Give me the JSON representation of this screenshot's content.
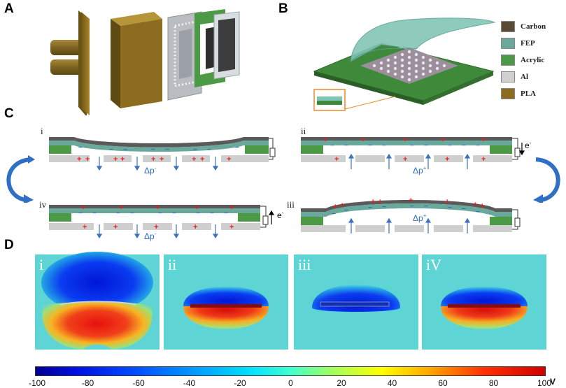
{
  "panels": {
    "a": "A",
    "b": "B",
    "c": "C",
    "d": "D"
  },
  "legend": [
    {
      "label": "Carbon",
      "color": "#5a4a34"
    },
    {
      "label": "FEP",
      "color": "#69a89a"
    },
    {
      "label": "Acrylic",
      "color": "#4c9a45"
    },
    {
      "label": "Al",
      "color": "#d0d0d0"
    },
    {
      "label": "PLA",
      "color": "#8c6d1f"
    }
  ],
  "steps": {
    "i": {
      "label": "i",
      "pressure": "Δp",
      "sign": "-"
    },
    "ii": {
      "label": "ii",
      "pressure": "Δp",
      "sign": "+",
      "electron": "e",
      "electron_sign": "-"
    },
    "iii": {
      "label": "iii",
      "pressure": "Δp",
      "sign": "+"
    },
    "iv": {
      "label": "iv",
      "pressure": "Δp",
      "sign": "-",
      "electron": "e",
      "electron_sign": "-"
    }
  },
  "maps": [
    {
      "label": "i",
      "mode": "split"
    },
    {
      "label": "ii",
      "mode": "cap"
    },
    {
      "label": "iii",
      "mode": "neg"
    },
    {
      "label": "iV",
      "mode": "cap"
    }
  ],
  "colorbar": {
    "ticks": [
      "-100",
      "-80",
      "-60",
      "-40",
      "-20",
      "0",
      "20",
      "40",
      "60",
      "80",
      "100"
    ],
    "unit": "V",
    "min": -100,
    "max": 100
  },
  "colors": {
    "carbon": "#5a4a34",
    "fep": "#69a89a",
    "acrylic": "#4c9a45",
    "al": "#cfcfcf",
    "pla": "#8c6d1f",
    "arrow_blue": "#3a73c4",
    "charge_red": "#e02020"
  }
}
